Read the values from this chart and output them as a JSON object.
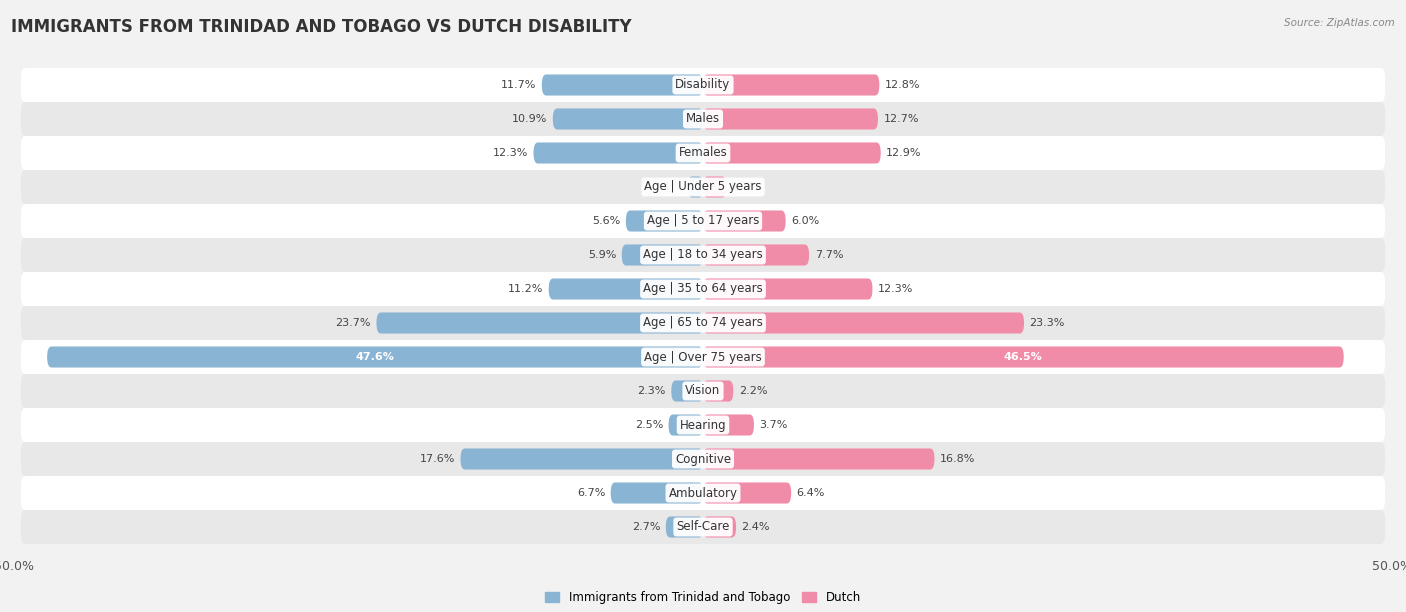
{
  "title": "IMMIGRANTS FROM TRINIDAD AND TOBAGO VS DUTCH DISABILITY",
  "source": "Source: ZipAtlas.com",
  "categories": [
    "Disability",
    "Males",
    "Females",
    "Age | Under 5 years",
    "Age | 5 to 17 years",
    "Age | 18 to 34 years",
    "Age | 35 to 64 years",
    "Age | 65 to 74 years",
    "Age | Over 75 years",
    "Vision",
    "Hearing",
    "Cognitive",
    "Ambulatory",
    "Self-Care"
  ],
  "left_values": [
    11.7,
    10.9,
    12.3,
    1.1,
    5.6,
    5.9,
    11.2,
    23.7,
    47.6,
    2.3,
    2.5,
    17.6,
    6.7,
    2.7
  ],
  "right_values": [
    12.8,
    12.7,
    12.9,
    1.7,
    6.0,
    7.7,
    12.3,
    23.3,
    46.5,
    2.2,
    3.7,
    16.8,
    6.4,
    2.4
  ],
  "left_color": "#8ab4d4",
  "right_color": "#f08ca8",
  "left_color_light": "#aecde0",
  "right_color_light": "#f5b8c8",
  "left_label": "Immigrants from Trinidad and Tobago",
  "right_label": "Dutch",
  "max_val": 50.0,
  "bg_color": "#f2f2f2",
  "row_color_odd": "#ffffff",
  "row_color_even": "#e8e8e8",
  "title_fontsize": 12,
  "label_fontsize": 8.5,
  "value_fontsize": 8.0,
  "special_row": 8,
  "special_left_label_inside": true,
  "special_right_label_inside": true
}
